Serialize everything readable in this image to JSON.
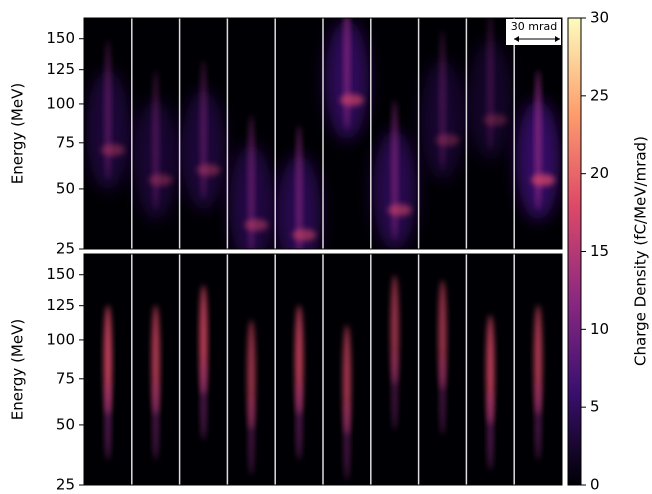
{
  "chart_data": [
    {
      "type": "heatmap",
      "ylabel": "Energy (MeV)",
      "yscale": "sqrt",
      "ylim": [
        25,
        168
      ],
      "yticks": [
        25,
        50,
        75,
        100,
        125,
        150
      ],
      "annotation": "30 mrad"
    },
    {
      "type": "heatmap",
      "ylabel": "Energy (MeV)",
      "yscale": "sqrt",
      "ylim": [
        25,
        168
      ],
      "yticks": [
        25,
        50,
        75,
        100,
        125,
        150
      ]
    }
  ],
  "colorbar": {
    "label": "Charge Density (fC/MeV/mrad)",
    "lim": [
      0,
      30
    ],
    "ticks": [
      0,
      5,
      10,
      15,
      20,
      25,
      30
    ],
    "colors": [
      "#000004",
      "#3b0f70",
      "#8c2981",
      "#de4968",
      "#fe9f6d",
      "#fcfdbf"
    ]
  }
}
